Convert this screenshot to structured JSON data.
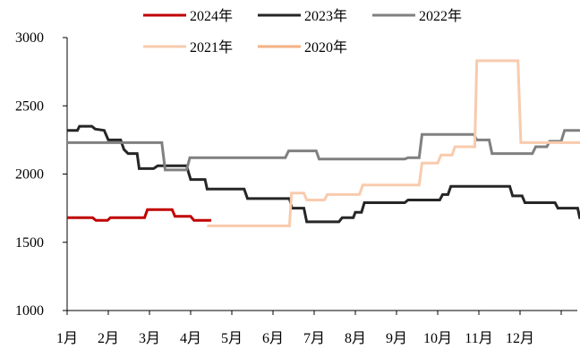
{
  "chart_data": {
    "type": "line",
    "title": "",
    "xlabel": "",
    "ylabel": "",
    "ylim": [
      1000,
      3000
    ],
    "yticks": [
      1000,
      1500,
      2000,
      2500,
      3000
    ],
    "xlim": [
      0,
      12
    ],
    "xtick_labels": [
      "1月",
      "2月",
      "3月",
      "4月",
      "5月",
      "6月",
      "7月",
      "8月",
      "9月",
      "10月",
      "11月",
      "12月"
    ],
    "grid": false,
    "legend_position": "top",
    "series": [
      {
        "name": "2024年",
        "color": "#C00000",
        "points": [
          [
            0,
            1680
          ],
          [
            0.62,
            1680
          ],
          [
            0.7,
            1660
          ],
          [
            0.98,
            1660
          ],
          [
            1.05,
            1680
          ],
          [
            1.88,
            1680
          ],
          [
            1.95,
            1740
          ],
          [
            2.55,
            1740
          ],
          [
            2.62,
            1690
          ],
          [
            3.0,
            1690
          ],
          [
            3.08,
            1660
          ],
          [
            3.5,
            1660
          ]
        ]
      },
      {
        "name": "2023年",
        "color": "#262626",
        "points": [
          [
            0,
            2320
          ],
          [
            0.25,
            2320
          ],
          [
            0.3,
            2350
          ],
          [
            0.6,
            2350
          ],
          [
            0.68,
            2330
          ],
          [
            0.9,
            2320
          ],
          [
            1.0,
            2250
          ],
          [
            1.3,
            2250
          ],
          [
            1.38,
            2180
          ],
          [
            1.48,
            2150
          ],
          [
            1.7,
            2150
          ],
          [
            1.75,
            2040
          ],
          [
            2.1,
            2040
          ],
          [
            2.2,
            2060
          ],
          [
            2.9,
            2060
          ],
          [
            3.0,
            1960
          ],
          [
            3.35,
            1960
          ],
          [
            3.4,
            1890
          ],
          [
            4.3,
            1890
          ],
          [
            4.38,
            1820
          ],
          [
            5.4,
            1820
          ],
          [
            5.46,
            1750
          ],
          [
            5.75,
            1750
          ],
          [
            5.82,
            1650
          ],
          [
            6.6,
            1650
          ],
          [
            6.68,
            1680
          ],
          [
            6.95,
            1680
          ],
          [
            7.0,
            1720
          ],
          [
            7.15,
            1720
          ],
          [
            7.22,
            1790
          ],
          [
            8.2,
            1790
          ],
          [
            8.28,
            1810
          ],
          [
            9.05,
            1810
          ],
          [
            9.12,
            1850
          ],
          [
            9.25,
            1850
          ],
          [
            9.32,
            1910
          ],
          [
            10.75,
            1910
          ],
          [
            10.82,
            1840
          ],
          [
            11.05,
            1840
          ],
          [
            11.12,
            1790
          ],
          [
            11.85,
            1790
          ],
          [
            11.92,
            1750
          ],
          [
            12.4,
            1750
          ],
          [
            12.45,
            1680
          ],
          [
            12.5,
            1680
          ]
        ]
      },
      {
        "name": "2022年",
        "color": "#808080",
        "points": [
          [
            0,
            2230
          ],
          [
            2.3,
            2230
          ],
          [
            2.38,
            2030
          ],
          [
            2.9,
            2030
          ],
          [
            2.98,
            2120
          ],
          [
            5.3,
            2120
          ],
          [
            5.38,
            2170
          ],
          [
            6.05,
            2170
          ],
          [
            6.12,
            2110
          ],
          [
            8.2,
            2110
          ],
          [
            8.28,
            2120
          ],
          [
            8.55,
            2120
          ],
          [
            8.62,
            2290
          ],
          [
            9.88,
            2290
          ],
          [
            9.95,
            2250
          ],
          [
            10.25,
            2250
          ],
          [
            10.32,
            2150
          ],
          [
            11.3,
            2150
          ],
          [
            11.38,
            2200
          ],
          [
            11.65,
            2200
          ],
          [
            11.72,
            2240
          ],
          [
            12.0,
            2240
          ],
          [
            12.08,
            2320
          ],
          [
            12.5,
            2320
          ]
        ]
      },
      {
        "name": "2021年",
        "color": "#F8CBAD",
        "points": [
          [
            3.4,
            1620
          ],
          [
            5.4,
            1620
          ],
          [
            5.45,
            1860
          ],
          [
            5.75,
            1860
          ],
          [
            5.82,
            1810
          ],
          [
            6.25,
            1810
          ],
          [
            6.32,
            1850
          ],
          [
            7.1,
            1850
          ],
          [
            7.18,
            1920
          ],
          [
            8.55,
            1920
          ],
          [
            8.62,
            2080
          ],
          [
            9.0,
            2080
          ],
          [
            9.08,
            2140
          ],
          [
            9.35,
            2140
          ],
          [
            9.42,
            2200
          ],
          [
            9.9,
            2200
          ],
          [
            9.95,
            2830
          ],
          [
            10.95,
            2830
          ],
          [
            11.02,
            2230
          ],
          [
            12.5,
            2230
          ]
        ]
      },
      {
        "name": "2020年",
        "color": "#F4B183",
        "points": []
      }
    ]
  }
}
